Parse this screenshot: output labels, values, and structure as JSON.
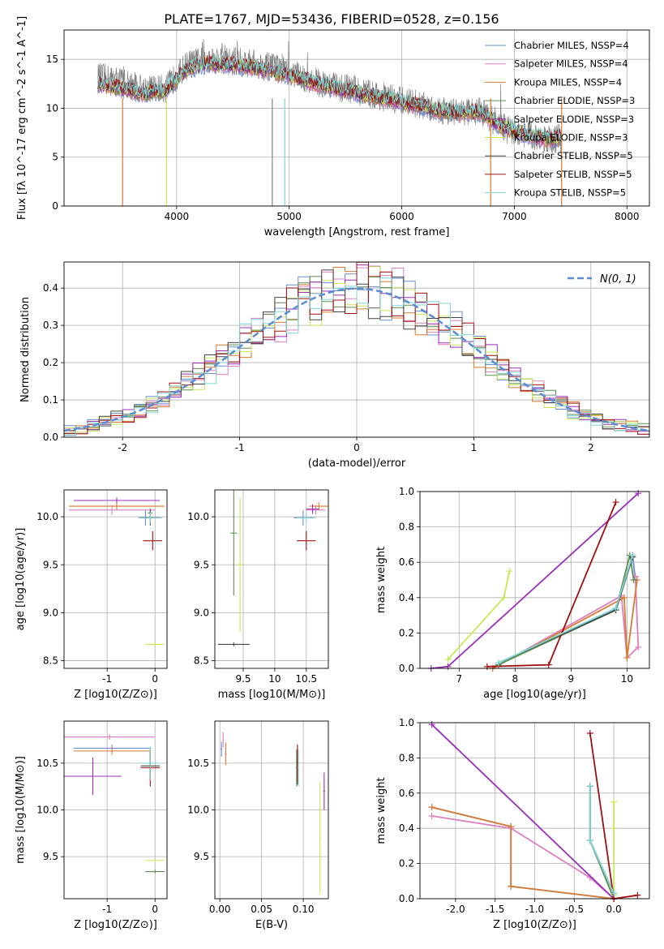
{
  "figure": {
    "title": "PLATE=1767, MJD=53436, FIBERID=0528, z=0.156"
  },
  "colors": {
    "chabrier_miles": "#6a8fd0",
    "salpeter_miles": "#e07fc0",
    "kroupa_miles": "#d87a30",
    "chabrier_elodie": "#5f8f4f",
    "salpeter_elodie": "#9a2fb8",
    "kroupa_elodie": "#c8e85a",
    "chabrier_stelib": "#444444",
    "salpeter_stelib": "#a01010",
    "kroupa_stelib": "#7fd6d6",
    "data": "#808080",
    "normal": "#5b8bd4",
    "grid": "#b0b0b0"
  },
  "legend_spectrum": [
    "Chabrier MILES, N_SSP=4",
    "Salpeter MILES, N_SSP=4",
    "Kroupa MILES, N_SSP=4",
    "Chabrier ELODIE, N_SSP=3",
    "Salpeter ELODIE, N_SSP=3",
    "Kroupa ELODIE, N_SSP=3",
    "Chabrier STELIB, N_SSP=5",
    "Salpeter STELIB, N_SSP=5",
    "Kroupa STELIB, N_SSP=5"
  ],
  "legend_normal": "N(0, 1)",
  "chart_data": [
    {
      "id": "spectrum",
      "type": "line",
      "xlabel": "wavelength [Angstrom, rest frame]",
      "ylabel": "Flux [fλ 10^-17 erg cm^-2 s^-1 A^-1]",
      "xlim": [
        3000,
        8200
      ],
      "ylim": [
        0,
        18
      ],
      "xticks": [
        4000,
        5000,
        6000,
        7000,
        8000
      ],
      "yticks": [
        0,
        5,
        10,
        15
      ],
      "series": [
        {
          "name": "data",
          "x": [
            3300,
            3500,
            3700,
            3900,
            4100,
            4300,
            4500,
            4700,
            4900,
            5100,
            5300,
            5500,
            5700,
            5900,
            6100,
            6300,
            6500,
            6700,
            6900,
            7100,
            7300,
            7420
          ],
          "y": [
            13.2,
            12.8,
            12.0,
            12.0,
            14.5,
            15.0,
            14.8,
            14.5,
            14.0,
            13.2,
            12.5,
            12.0,
            11.5,
            11.0,
            10.5,
            10.0,
            9.5,
            9.8,
            8.0,
            7.3,
            6.8,
            7.0
          ]
        },
        {
          "name": "model",
          "x": [
            3300,
            3500,
            3700,
            3900,
            4100,
            4300,
            4500,
            4700,
            4900,
            5100,
            5300,
            5500,
            5700,
            5900,
            6100,
            6300,
            6500,
            6700,
            6900,
            7100,
            7300,
            7420
          ],
          "y": [
            12.5,
            12.0,
            11.5,
            11.8,
            14.0,
            14.6,
            14.4,
            14.1,
            13.6,
            13.0,
            12.3,
            11.8,
            11.3,
            10.8,
            10.4,
            9.8,
            9.5,
            9.6,
            8.0,
            7.3,
            6.8,
            7.0
          ]
        }
      ]
    },
    {
      "id": "residuals",
      "type": "line",
      "xlabel": "(data-model)/error",
      "ylabel": "Normed distribution",
      "xlim": [
        -2.5,
        2.5
      ],
      "ylim": [
        0,
        0.47
      ],
      "xticks": [
        -2,
        -1,
        0,
        1,
        2
      ],
      "yticks": [
        0.0,
        0.1,
        0.2,
        0.3,
        0.4
      ],
      "bin_width": 0.1
    },
    {
      "id": "z-vs-age",
      "type": "scatter",
      "xlabel": "Z [log10(Z/Z⊙)]",
      "ylabel": "age [log10(age/yr)]",
      "xlim": [
        -1.9,
        0.25
      ],
      "ylim": [
        8.42,
        10.28
      ],
      "xticks": [
        -1,
        0
      ],
      "yticks": [
        8.5,
        9.0,
        9.5,
        10.0
      ],
      "points": [
        {
          "x": -0.2,
          "y": 9.99,
          "xerr": 0.15,
          "yerr": 0.08
        },
        {
          "x": -0.9,
          "y": 10.07,
          "xerr": 0.9,
          "yerr": 0.05
        },
        {
          "x": -0.8,
          "y": 10.11,
          "xerr": 1.0,
          "yerr": 0.04
        },
        {
          "x": -0.1,
          "y": 10.04,
          "xerr": 0.05,
          "yerr": 0.05
        },
        {
          "x": -0.8,
          "y": 10.17,
          "xerr": 0.9,
          "yerr": 0.03
        },
        {
          "x": 0.0,
          "y": 8.67,
          "xerr": 0.2,
          "yerr": 0.02
        },
        {
          "x": -0.1,
          "y": 9.99,
          "xerr": 0.2,
          "yerr": 0.08
        },
        {
          "x": -0.05,
          "y": 9.75,
          "xerr": 0.2,
          "yerr": 0.1
        },
        {
          "x": -0.1,
          "y": 9.99,
          "xerr": 0.25,
          "yerr": 0.06
        }
      ]
    },
    {
      "id": "mass-vs-age",
      "type": "scatter",
      "xlabel": "mass [log10(M/M⊙)]",
      "ylabel": "",
      "xlim": [
        9.05,
        10.85
      ],
      "ylim": [
        8.42,
        10.28
      ],
      "xticks": [
        9.5,
        10.0,
        10.5
      ],
      "yticks": [
        8.5,
        9.0,
        9.5,
        10.0
      ],
      "points": [
        {
          "x": 10.45,
          "y": 9.99,
          "xerr": 0.15,
          "yerr": 0.08
        },
        {
          "x": 10.65,
          "y": 10.07,
          "xerr": 0.15,
          "yerr": 0.05
        },
        {
          "x": 10.7,
          "y": 10.11,
          "xerr": 0.15,
          "yerr": 0.04
        },
        {
          "x": 9.35,
          "y": 9.83,
          "xerr": 0.05,
          "yerr": 0.65
        },
        {
          "x": 10.6,
          "y": 10.08,
          "xerr": 0.1,
          "yerr": 0.05
        },
        {
          "x": 9.45,
          "y": 9.5,
          "xerr": 0.05,
          "yerr": 0.7
        },
        {
          "x": 9.35,
          "y": 8.67,
          "xerr": 0.25,
          "yerr": 0.02
        },
        {
          "x": 10.5,
          "y": 9.75,
          "xerr": 0.15,
          "yerr": 0.1
        },
        {
          "x": 10.5,
          "y": 9.99,
          "xerr": 0.15,
          "yerr": 0.06
        }
      ]
    },
    {
      "id": "mass-weight-age",
      "type": "line",
      "xlabel": "age [log10(age/yr)]",
      "ylabel": "mass weight",
      "xlim": [
        6.3,
        10.4
      ],
      "ylim": [
        0,
        1
      ],
      "xticks": [
        7,
        8,
        9,
        10
      ],
      "yticks": [
        0.0,
        0.2,
        0.4,
        0.6,
        0.8,
        1.0
      ],
      "series": [
        {
          "x": [
            7.7,
            9.8,
            10.1,
            10.15
          ],
          "y": [
            0.02,
            0.34,
            0.64,
            0.5
          ]
        },
        {
          "x": [
            7.6,
            9.9,
            10.0,
            10.2,
            10.15
          ],
          "y": [
            0.0,
            0.41,
            0.06,
            0.12,
            0.52
          ]
        },
        {
          "x": [
            7.6,
            9.95,
            10.0,
            10.18
          ],
          "y": [
            0.0,
            0.4,
            0.06,
            0.5
          ]
        },
        {
          "x": [
            7.7,
            9.8,
            10.05,
            10.12
          ],
          "y": [
            0.02,
            0.33,
            0.64,
            0.5
          ]
        },
        {
          "x": [
            6.5,
            6.8,
            10.2
          ],
          "y": [
            0.0,
            0.01,
            0.99
          ]
        },
        {
          "x": [
            6.8,
            7.8,
            7.9
          ],
          "y": [
            0.05,
            0.4,
            0.55
          ]
        },
        {
          "x": [
            7.7,
            9.8,
            10.1
          ],
          "y": [
            0.03,
            0.33,
            0.63
          ]
        },
        {
          "x": [
            7.5,
            8.6,
            9.8
          ],
          "y": [
            0.01,
            0.02,
            0.94
          ]
        },
        {
          "x": [
            7.7,
            9.8,
            10.1
          ],
          "y": [
            0.03,
            0.34,
            0.64
          ]
        }
      ]
    },
    {
      "id": "z-vs-mass",
      "type": "scatter",
      "xlabel": "Z [log10(Z/Z⊙)]",
      "ylabel": "mass [log10(M/M⊙)]",
      "xlim": [
        -1.9,
        0.25
      ],
      "ylim": [
        9.05,
        10.95
      ],
      "xticks": [
        -1,
        0
      ],
      "yticks": [
        9.5,
        10.0,
        10.5
      ],
      "points": [
        {
          "x": -0.9,
          "y": 10.66,
          "xerr": 0.8,
          "yerr": 0.04
        },
        {
          "x": -0.95,
          "y": 10.78,
          "xerr": 0.95,
          "yerr": 0.03
        },
        {
          "x": -0.9,
          "y": 10.63,
          "xerr": 0.8,
          "yerr": 0.04
        },
        {
          "x": 0.0,
          "y": 9.34,
          "xerr": 0.2,
          "yerr": 0.02
        },
        {
          "x": -1.3,
          "y": 10.36,
          "xerr": 0.6,
          "yerr": 0.2
        },
        {
          "x": 0.0,
          "y": 9.46,
          "xerr": 0.2,
          "yerr": 0.02
        },
        {
          "x": -0.1,
          "y": 10.47,
          "xerr": 0.2,
          "yerr": 0.15
        },
        {
          "x": -0.1,
          "y": 10.45,
          "xerr": 0.2,
          "yerr": 0.2
        },
        {
          "x": -0.1,
          "y": 10.5,
          "xerr": 0.2,
          "yerr": 0.18
        }
      ]
    },
    {
      "id": "ebv-vs-mass",
      "type": "scatter",
      "xlabel": "E(B-V)",
      "ylabel": "",
      "xlim": [
        -0.006,
        0.13
      ],
      "ylim": [
        9.05,
        10.95
      ],
      "xticks": [
        0.0,
        0.05,
        0.1
      ],
      "yticks": [
        9.5,
        10.0,
        10.5
      ],
      "points": [
        {
          "x": 0.002,
          "y": 10.65,
          "xerr": 0.001,
          "yerr": 0.08
        },
        {
          "x": 0.004,
          "y": 10.75,
          "xerr": 0.001,
          "yerr": 0.08
        },
        {
          "x": 0.007,
          "y": 10.6,
          "xerr": 0.001,
          "yerr": 0.12
        },
        {
          "x": 0.092,
          "y": 10.45,
          "xerr": 0.001,
          "yerr": 0.2
        },
        {
          "x": 0.125,
          "y": 10.2,
          "xerr": 0.001,
          "yerr": 0.2
        },
        {
          "x": 0.12,
          "y": 9.7,
          "xerr": 0.001,
          "yerr": 0.6
        },
        {
          "x": 0.093,
          "y": 10.45,
          "xerr": 0.001,
          "yerr": 0.18
        },
        {
          "x": 0.093,
          "y": 10.5,
          "xerr": 0.001,
          "yerr": 0.2
        },
        {
          "x": 0.094,
          "y": 10.45,
          "xerr": 0.001,
          "yerr": 0.2
        }
      ]
    },
    {
      "id": "mass-weight-z",
      "type": "line",
      "xlabel": "Z [log10(Z/Z⊙)]",
      "ylabel": "mass weight",
      "xlim": [
        -2.45,
        0.45
      ],
      "ylim": [
        0,
        1
      ],
      "xticks": [
        -2.0,
        -1.5,
        -1.0,
        -0.5,
        0.0
      ],
      "yticks": [
        0.0,
        0.2,
        0.4,
        0.6,
        0.8,
        1.0
      ],
      "series": [
        {
          "x": [
            -2.3,
            -1.3,
            -1.3,
            0.0
          ],
          "y": [
            0.52,
            0.41,
            0.07,
            0.0
          ]
        },
        {
          "x": [
            -2.3,
            -1.3,
            -0.3,
            0.0
          ],
          "y": [
            0.47,
            0.4,
            0.12,
            0.0
          ]
        },
        {
          "x": [
            -2.3,
            -1.3,
            -1.3,
            0.0
          ],
          "y": [
            0.52,
            0.41,
            0.07,
            0.0
          ]
        },
        {
          "x": [
            -0.3,
            -0.3,
            0.0
          ],
          "y": [
            0.64,
            0.33,
            0.0
          ]
        },
        {
          "x": [
            -2.3,
            0.0
          ],
          "y": [
            0.99,
            0.0
          ]
        },
        {
          "x": [
            0.0,
            0.0,
            0.0
          ],
          "y": [
            0.55,
            0.4,
            0.02
          ]
        },
        {
          "x": [
            -0.3,
            -0.3,
            0.0
          ],
          "y": [
            0.64,
            0.33,
            0.03
          ]
        },
        {
          "x": [
            -0.3,
            0.0,
            0.3
          ],
          "y": [
            0.94,
            0.0,
            0.02
          ]
        },
        {
          "x": [
            -0.3,
            -0.3,
            0.0
          ],
          "y": [
            0.64,
            0.33,
            0.03
          ]
        }
      ]
    }
  ]
}
